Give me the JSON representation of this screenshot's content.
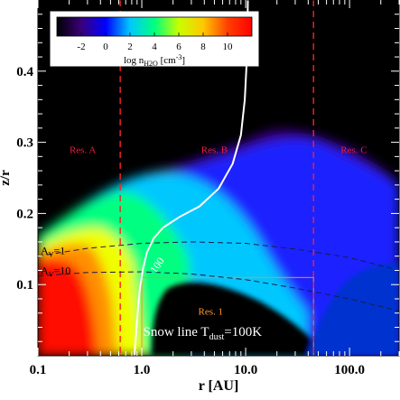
{
  "chart_data": {
    "type": "heatmap",
    "title": "",
    "xlabel": "r [AU]",
    "ylabel": "z/r",
    "x_scale": "log",
    "xlim": [
      0.1,
      300
    ],
    "ylim": [
      0.0,
      0.5
    ],
    "x_ticks": [
      0.1,
      1.0,
      10.0,
      100.0
    ],
    "x_tick_labels": [
      "0.1",
      "1.0",
      "10.0",
      "100.0"
    ],
    "y_ticks": [
      0.1,
      0.2,
      0.3,
      0.4
    ],
    "y_tick_labels": [
      "0.1",
      "0.2",
      "0.3",
      "0.4"
    ],
    "colorbar": {
      "label": "log n",
      "label_sub": "H2O",
      "label_tail": " [cm",
      "label_sup": "-3",
      "label_end": "]",
      "range": [
        -4,
        12
      ],
      "ticks": [
        -2,
        0,
        2,
        4,
        6,
        8,
        10
      ],
      "tick_labels": [
        "-2",
        "0",
        "2",
        "4",
        "6",
        "8",
        "10"
      ],
      "colors": [
        "#000000",
        "#3a007a",
        "#0000ff",
        "#00c8ff",
        "#00ff80",
        "#c8ff00",
        "#ffc800",
        "#ff4000",
        "#ff0000"
      ]
    },
    "boundaries_r": [
      0.62,
      45.0
    ],
    "region_labels": [
      {
        "text": "Res. A",
        "r": 0.27,
        "z": 0.285
      },
      {
        "text": "Res. B",
        "r": 5.0,
        "z": 0.285
      },
      {
        "text": "Res. C",
        "r": 110.0,
        "z": 0.285
      },
      {
        "text": "Res. 1",
        "r": 4.6,
        "z": 0.058
      }
    ],
    "av_contours": [
      {
        "label": "A",
        "sub": "V",
        "value": "=1",
        "r": [
          0.1,
          0.3,
          1,
          3,
          10,
          30,
          100,
          300
        ],
        "z": [
          0.14,
          0.151,
          0.158,
          0.16,
          0.158,
          0.15,
          0.138,
          0.12
        ]
      },
      {
        "label": "A",
        "sub": "V",
        "value": "=10",
        "r": [
          0.1,
          0.3,
          1,
          3,
          10,
          30,
          100,
          300
        ],
        "z": [
          0.112,
          0.117,
          0.118,
          0.115,
          0.107,
          0.095,
          0.08,
          0.063
        ]
      }
    ],
    "contour_100K": {
      "label": "100",
      "r": [
        0.85,
        0.9,
        0.95,
        1.02,
        1.12,
        1.3,
        1.6,
        2.3,
        3.6,
        5.5,
        7.5,
        9.0,
        9.8,
        10.2,
        10.4,
        10.5
      ],
      "z": [
        0.0,
        0.05,
        0.09,
        0.12,
        0.145,
        0.165,
        0.18,
        0.195,
        0.21,
        0.235,
        0.27,
        0.31,
        0.36,
        0.41,
        0.45,
        0.5
      ]
    },
    "res1_box": {
      "r": [
        1.0,
        45.0
      ],
      "z": [
        0.0,
        0.11
      ]
    },
    "annotation": {
      "text": "Snow line T",
      "sub": "dust",
      "tail": "=100K"
    }
  }
}
